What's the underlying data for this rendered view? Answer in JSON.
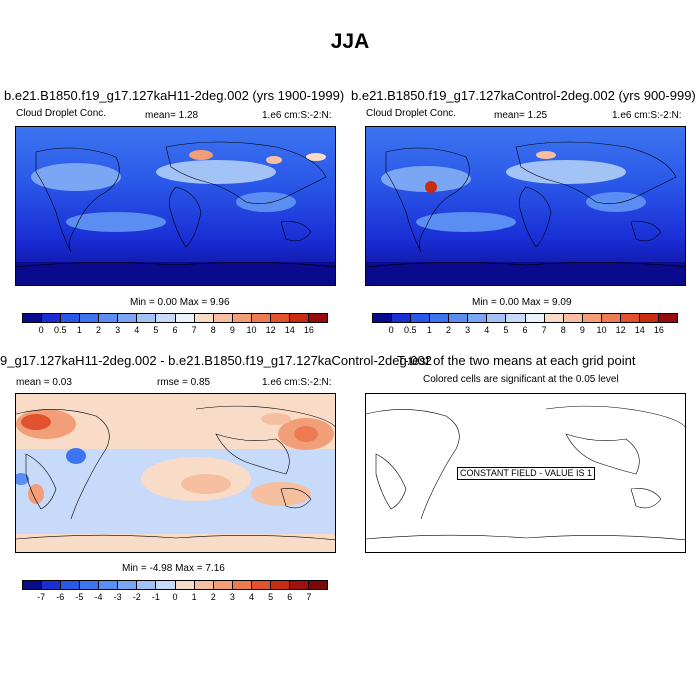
{
  "title": "JJA",
  "panels": [
    {
      "case_title": "b.e21.B1850.f19_g17.127kaH11-2deg.002 (yrs 1900-1999)",
      "variable": "Cloud Droplet Conc.",
      "mean": "mean=   1.28",
      "units": "1.e6 cm:S:-2:N:",
      "minmax": "Min =   0.00 Max =   9.96"
    },
    {
      "case_title": "b.e21.B1850.f19_g17.127kaControl-2deg.002 (yrs 900-999)",
      "variable": "Cloud Droplet Conc.",
      "mean": "mean=   1.25",
      "units": "1.e6 cm:S:-2:N:",
      "minmax": "Min =   0.00 Max =   9.09"
    },
    {
      "case_title": "9_g17.127kaH11-2deg.002 - b.e21.B1850.f19_g17.127kaControl-2deg.002",
      "mean": "mean =   0.03",
      "rmse": "rmse =   0.85",
      "units": "1.e6 cm:S:-2:N:",
      "minmax": "Min =  -4.98 Max =   7.16"
    },
    {
      "title": "T-test of the two means at each grid point",
      "subtitle": "Colored cells are significant at the 0.05 level",
      "constant_field": "CONSTANT FIELD - VALUE IS 1"
    }
  ],
  "colorbar_abs": {
    "labels": [
      "0",
      "0.5",
      "1",
      "2",
      "3",
      "4",
      "5",
      "6",
      "7",
      "8",
      "9",
      "10",
      "12",
      "14",
      "16"
    ],
    "colors": [
      "#0a0a8c",
      "#1a2ed6",
      "#2a58e8",
      "#3d74f0",
      "#5a8ef2",
      "#7aa6f4",
      "#a3c3f7",
      "#c8daf9",
      "#ecf2fc",
      "#f9dcc8",
      "#f6bfa0",
      "#f29e79",
      "#ec7a52",
      "#e2522e",
      "#c82d14",
      "#980c0c"
    ]
  },
  "colorbar_diff": {
    "labels": [
      "-7",
      "-6",
      "-5",
      "-4",
      "-3",
      "-2",
      "-1",
      "0",
      "1",
      "2",
      "3",
      "4",
      "5",
      "6",
      "7"
    ],
    "colors": [
      "#0a0a8c",
      "#1a2ed6",
      "#2a58e8",
      "#3d74f0",
      "#5a8ef2",
      "#7aa6f4",
      "#a3c3f7",
      "#c8daf9",
      "#f9dcc8",
      "#f6bfa0",
      "#f29e79",
      "#ec7a52",
      "#e2522e",
      "#c82d14",
      "#a01010",
      "#7a0a0a"
    ]
  }
}
